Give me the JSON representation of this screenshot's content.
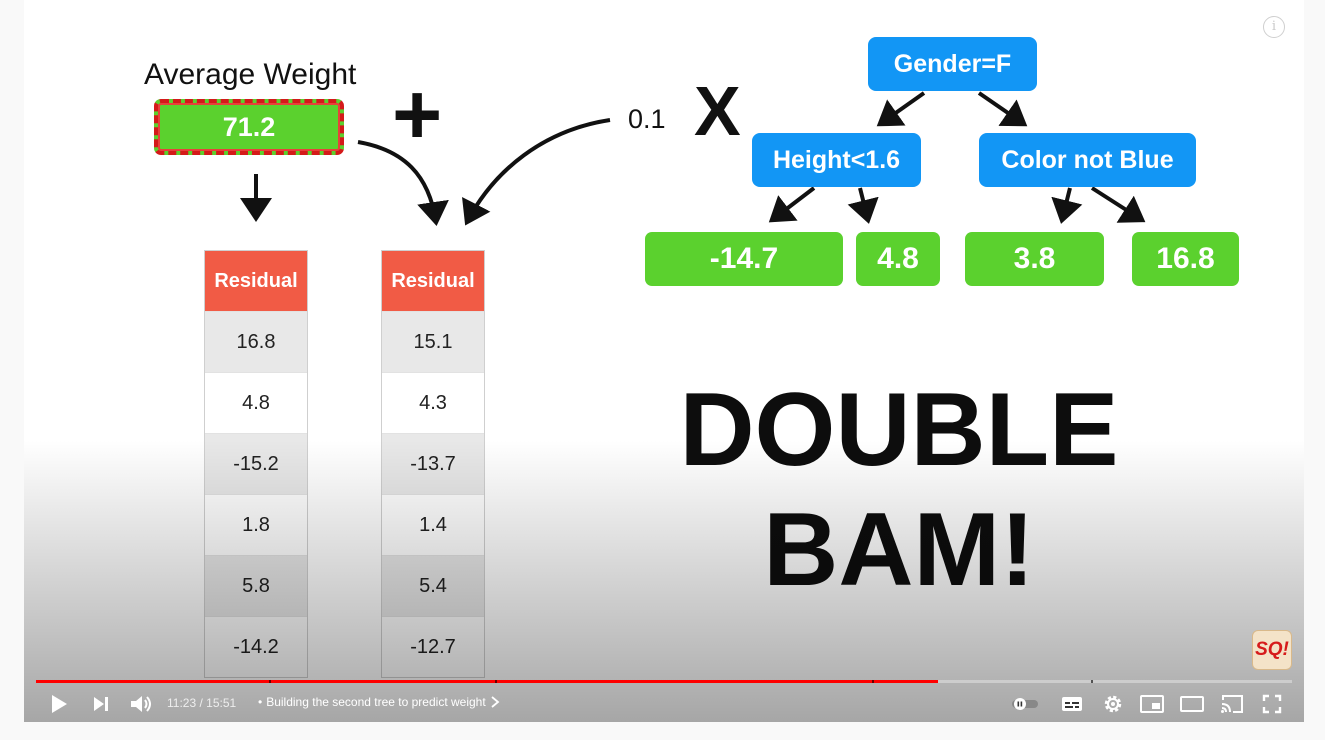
{
  "slide": {
    "average_label": "Average Weight",
    "average_value": "71.2",
    "plus": "+",
    "scale": "0.1",
    "times": "X",
    "left_table": {
      "header": "Residual",
      "values": [
        "16.8",
        "4.8",
        "-15.2",
        "1.8",
        "5.8",
        "-14.2"
      ]
    },
    "right_table": {
      "header": "Residual",
      "values": [
        "15.1",
        "4.3",
        "-13.7",
        "1.4",
        "5.4",
        "-12.7"
      ]
    },
    "tree": {
      "root": "Gender=F",
      "left_node": "Height<1.6",
      "right_node": "Color not Blue",
      "leaves": [
        "-14.7",
        "4.8",
        "3.8",
        "16.8"
      ]
    },
    "headline_line1": "DOUBLE",
    "headline_line2": "BAM!",
    "channel_logo": "SQ!"
  },
  "player": {
    "current_time": "11:23",
    "duration": "15:51",
    "separator": "/",
    "chapter_title": "Building the second tree to predict weight",
    "progress_fraction": 0.718,
    "colors": {
      "accent": "#ff0000",
      "node_blue": "#1296f5",
      "leaf_green": "#5bd12e",
      "header_red": "#f15b45"
    },
    "icons": [
      "play-icon",
      "next-icon",
      "volume-icon",
      "autoplay-toggle-icon",
      "subtitles-icon",
      "settings-icon",
      "miniplayer-icon",
      "theater-icon",
      "cast-icon",
      "fullscreen-icon",
      "info-icon"
    ]
  }
}
